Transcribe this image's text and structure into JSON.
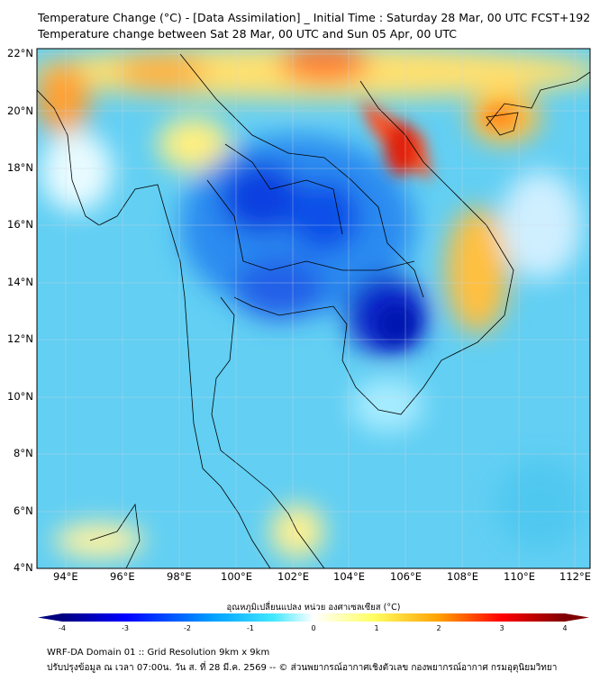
{
  "title": {
    "line1": "Temperature Change (°C) - [Data Assimilation] _ Initial Time : Saturday 28 Mar, 00 UTC FCST+192",
    "line2": "Temperature change between Sat 28 Mar, 00 UTC and Sun 05 Apr, 00 UTC"
  },
  "map": {
    "lat_labels": [
      "22°N",
      "20°N",
      "18°N",
      "16°N",
      "14°N",
      "12°N",
      "10°N",
      "8°N",
      "6°N",
      "4°N"
    ],
    "lon_labels": [
      "94°E",
      "96°E",
      "98°E",
      "100°E",
      "102°E",
      "104°E",
      "106°E",
      "108°E",
      "110°E",
      "112°E"
    ],
    "lat_range": [
      4,
      22
    ],
    "lon_range": [
      93,
      112.6
    ]
  },
  "colorbar": {
    "label": "อุณหภูมิเปลี่ยนแปลง หน่วย องศาเซลเซียส (°C)",
    "ticks": [
      "-4",
      "-3",
      "-2",
      "-1",
      "0",
      "1",
      "2",
      "3",
      "4"
    ],
    "range": [
      -4,
      4
    ],
    "colors": [
      "#00007f",
      "#0000ff",
      "#00a0ff",
      "#40e8ff",
      "#ffffff",
      "#ffff60",
      "#ffa000",
      "#ff0000",
      "#7f0000"
    ]
  },
  "footer": {
    "line1": "WRF-DA Domain 01 :: Grid Resolution 9km x 9km",
    "line2": "ปรับปรุงข้อมูล ณ เวลา 07:00น. วัน ส. ที่ 28 มี.ค. 2569 -- © ส่วนพยากรณ์อากาศเชิงตัวเลข กองพยากรณ์อากาศ กรมอุตุนิยมวิทยา"
  }
}
